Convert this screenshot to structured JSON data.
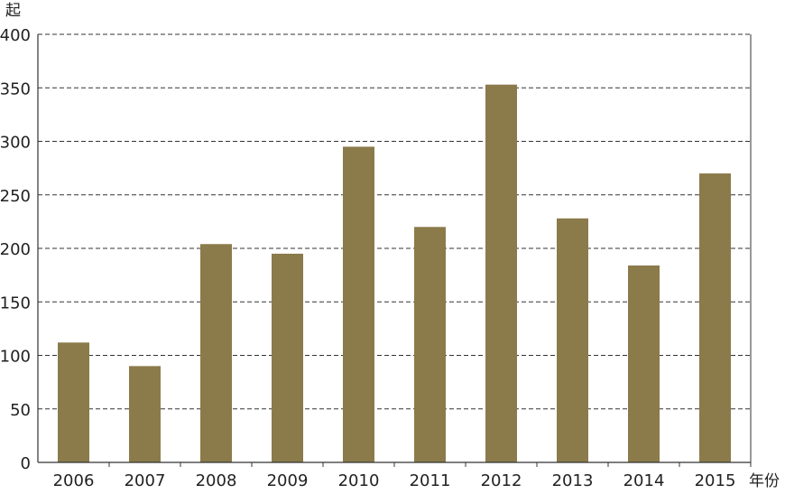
{
  "chart_data": {
    "type": "bar",
    "title": "",
    "xlabel": "年份",
    "ylabel": "起",
    "categories": [
      "2006",
      "2007",
      "2008",
      "2009",
      "2010",
      "2011",
      "2012",
      "2013",
      "2014",
      "2015"
    ],
    "values": [
      112,
      90,
      204,
      195,
      295,
      220,
      353,
      228,
      184,
      270
    ],
    "ylim": [
      0,
      400
    ],
    "yticks": [
      0,
      50,
      100,
      150,
      200,
      250,
      300,
      350,
      400
    ],
    "grid": true,
    "grid_style": "dashed",
    "bar_color": "#8b7b4b",
    "legend": "none"
  }
}
